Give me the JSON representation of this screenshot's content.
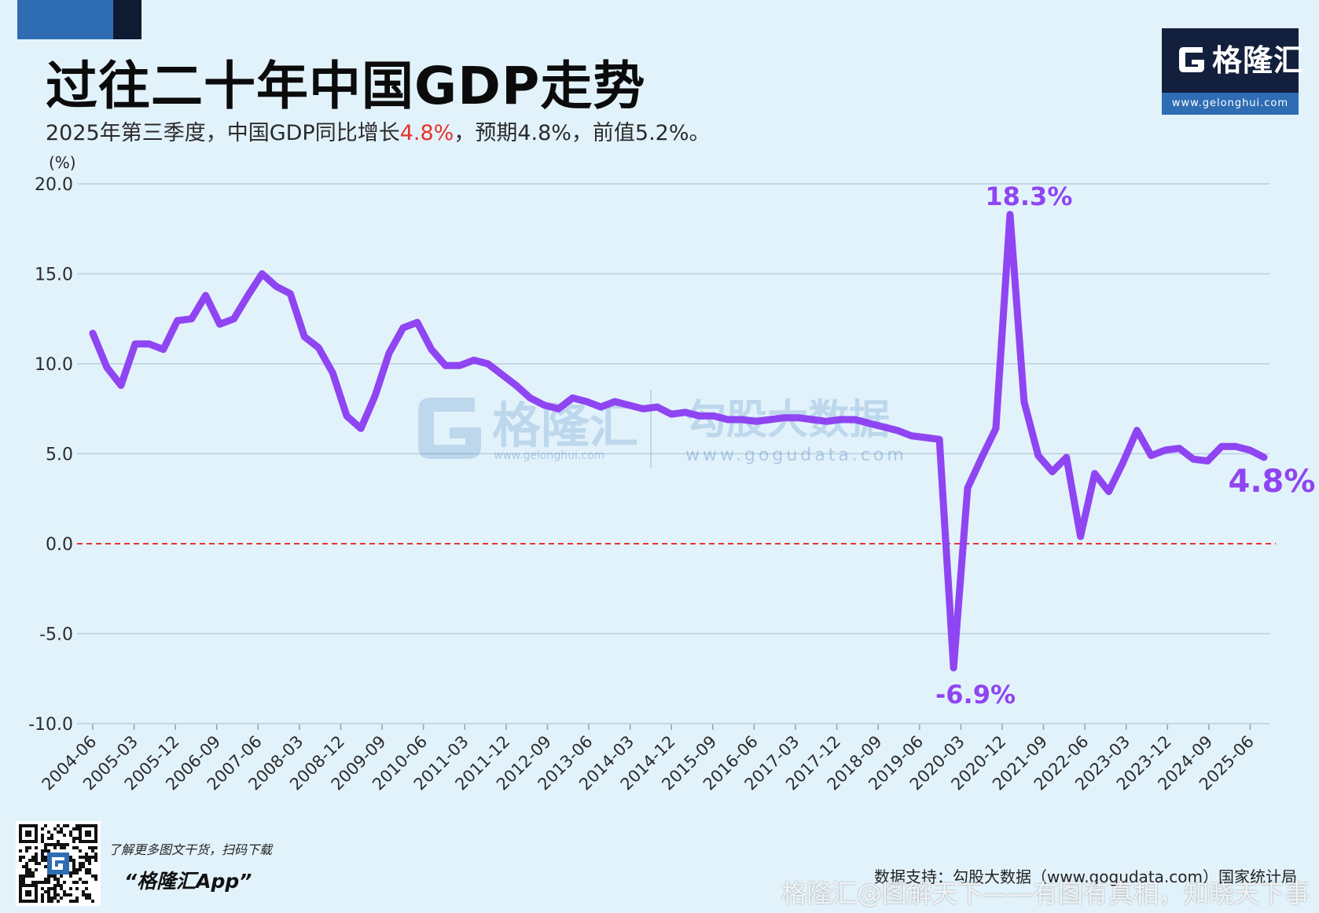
{
  "header": {
    "title": "过往二十年中国GDP走势",
    "subtitle_prefix": "2025年第三季度，中国GDP同比增长",
    "subtitle_highlight": "4.8%",
    "subtitle_suffix": "，预期4.8%，前值5.2%。"
  },
  "logo": {
    "name": "格隆汇",
    "url": "www.gelonghui.com"
  },
  "watermark": {
    "name": "格隆汇",
    "url": "www.gelonghui.com",
    "data_name": "勾股大数据",
    "data_url": "www.gogudata.com"
  },
  "chart_data": {
    "type": "line",
    "unit_label": "(%)",
    "ylim": [
      -10,
      20
    ],
    "yticks": [
      "20.0",
      "15.0",
      "10.0",
      "5.0",
      "0.0",
      "-5.0",
      "-10.0"
    ],
    "ytick_values": [
      20,
      15,
      10,
      5,
      0,
      -5,
      -10
    ],
    "x_tick_labels": [
      "2004-06",
      "2005-03",
      "2005-12",
      "2006-09",
      "2007-06",
      "2008-03",
      "2008-12",
      "2009-09",
      "2010-06",
      "2011-03",
      "2011-12",
      "2012-09",
      "2013-06",
      "2014-03",
      "2014-12",
      "2015-09",
      "2016-06",
      "2017-03",
      "2017-12",
      "2018-09",
      "2019-06",
      "2020-03",
      "2020-12",
      "2021-09",
      "2022-06",
      "2023-03",
      "2023-12",
      "2024-09",
      "2025-06"
    ],
    "x_start": "2004-06",
    "x_end": "2025-09",
    "series": [
      {
        "color": "#8f45f2",
        "values": [
          11.7,
          9.8,
          8.8,
          11.1,
          11.1,
          10.8,
          12.4,
          12.5,
          13.8,
          12.2,
          12.5,
          13.8,
          15.0,
          14.3,
          13.9,
          11.5,
          10.9,
          9.5,
          7.1,
          6.4,
          8.2,
          10.6,
          12.0,
          12.3,
          10.8,
          9.9,
          9.9,
          10.2,
          10.0,
          9.4,
          8.8,
          8.1,
          7.7,
          7.5,
          8.1,
          7.9,
          7.6,
          7.9,
          7.7,
          7.5,
          7.6,
          7.2,
          7.3,
          7.1,
          7.1,
          6.9,
          6.9,
          6.8,
          6.9,
          7.0,
          7.0,
          6.9,
          6.8,
          6.9,
          6.9,
          6.7,
          6.5,
          6.3,
          6.0,
          5.9,
          5.8,
          -6.9,
          3.1,
          4.8,
          6.4,
          18.3,
          7.9,
          4.9,
          4.0,
          4.8,
          0.4,
          3.9,
          2.9,
          4.5,
          6.3,
          4.9,
          5.2,
          5.3,
          4.7,
          4.6,
          5.4,
          5.4,
          5.2,
          4.8
        ]
      }
    ],
    "annotations": [
      {
        "label": "18.3%",
        "x": "2021-03",
        "y": 18.3
      },
      {
        "label": "-6.9%",
        "x": "2020-03",
        "y": -6.9
      },
      {
        "label": "4.8%",
        "x": "2025-09",
        "y": 4.8
      }
    ],
    "reference_line": {
      "y": 0,
      "color": "#e8322b",
      "style": "dashed"
    },
    "grid": true,
    "legend": "none"
  },
  "footer": {
    "promo_line": "了解更多图文干货，扫码下载",
    "promo_app": "“格隆汇App”",
    "source": "数据支持：勾股大数据（www.gogudata.com）国家统计局",
    "watermark": "格隆汇@图解天下——有图有真相，知晓天下事"
  }
}
